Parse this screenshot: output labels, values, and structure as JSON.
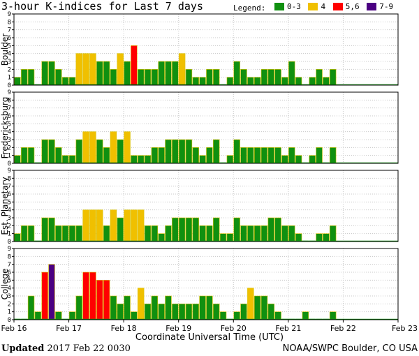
{
  "title": "3-hour K-indices for Last 7 days",
  "legend": {
    "label": "Legend:",
    "items": [
      {
        "label": "0-3",
        "color": "#109010"
      },
      {
        "label": "4",
        "color": "#f0c000"
      },
      {
        "label": "5,6",
        "color": "#ff0000"
      },
      {
        "label": "7-9",
        "color": "#4b0082"
      }
    ]
  },
  "footer": {
    "updated_word": "Updated",
    "updated_value": " 2017 Feb 22 0030",
    "credit": "NOAA/SWPC Boulder, CO USA"
  },
  "chart_data": {
    "type": "bar",
    "xlabel": "Coordinate Universal Time (UTC)",
    "x_ticks": [
      "Feb 16",
      "Feb 17",
      "Feb 18",
      "Feb 19",
      "Feb 20",
      "Feb 21",
      "Feb 22",
      "Feb 23"
    ],
    "y_ticks": [
      "0",
      "1",
      "2",
      "3",
      "4",
      "5",
      "6",
      "7",
      "8",
      "9"
    ],
    "ylim": [
      0,
      9
    ],
    "bars_per_day": 8,
    "grid": true,
    "panels": [
      {
        "name": "Boulder",
        "values": [
          1,
          2,
          2,
          0,
          3,
          3,
          2,
          1,
          1,
          4,
          4,
          4,
          3,
          3,
          2,
          4,
          3,
          5,
          2,
          2,
          2,
          3,
          3,
          3,
          4,
          2,
          1,
          1,
          2,
          2,
          0,
          1,
          3,
          2,
          1,
          1,
          2,
          2,
          2,
          1,
          3,
          1,
          0,
          1,
          2,
          1,
          2
        ]
      },
      {
        "name": "Fredericksburg",
        "values": [
          1,
          2,
          2,
          0,
          3,
          3,
          2,
          1,
          1,
          3,
          4,
          4,
          3,
          2,
          4,
          3,
          4,
          1,
          1,
          1,
          2,
          2,
          3,
          3,
          3,
          3,
          2,
          1,
          2,
          3,
          0,
          1,
          3,
          2,
          2,
          2,
          2,
          2,
          2,
          1,
          2,
          1,
          0,
          1,
          2,
          0,
          2
        ]
      },
      {
        "name": "Est. Planetary",
        "values": [
          1,
          2,
          2,
          0,
          3,
          3,
          2,
          2,
          2,
          2,
          4,
          4,
          4,
          2,
          4,
          3,
          4,
          4,
          4,
          2,
          2,
          1,
          2,
          3,
          3,
          3,
          3,
          2,
          2,
          3,
          1,
          1,
          3,
          2,
          2,
          2,
          2,
          3,
          3,
          2,
          2,
          1,
          0,
          0,
          1,
          1,
          2
        ]
      },
      {
        "name": "College",
        "values": [
          0,
          0,
          3,
          1,
          6,
          7,
          1,
          0,
          1,
          3,
          6,
          6,
          5,
          5,
          3,
          2,
          3,
          1,
          4,
          2,
          3,
          2,
          3,
          2,
          2,
          2,
          2,
          3,
          3,
          2,
          1,
          0,
          1,
          2,
          4,
          3,
          3,
          2,
          1,
          0,
          0,
          0,
          1,
          0,
          0,
          0,
          1
        ]
      }
    ]
  }
}
